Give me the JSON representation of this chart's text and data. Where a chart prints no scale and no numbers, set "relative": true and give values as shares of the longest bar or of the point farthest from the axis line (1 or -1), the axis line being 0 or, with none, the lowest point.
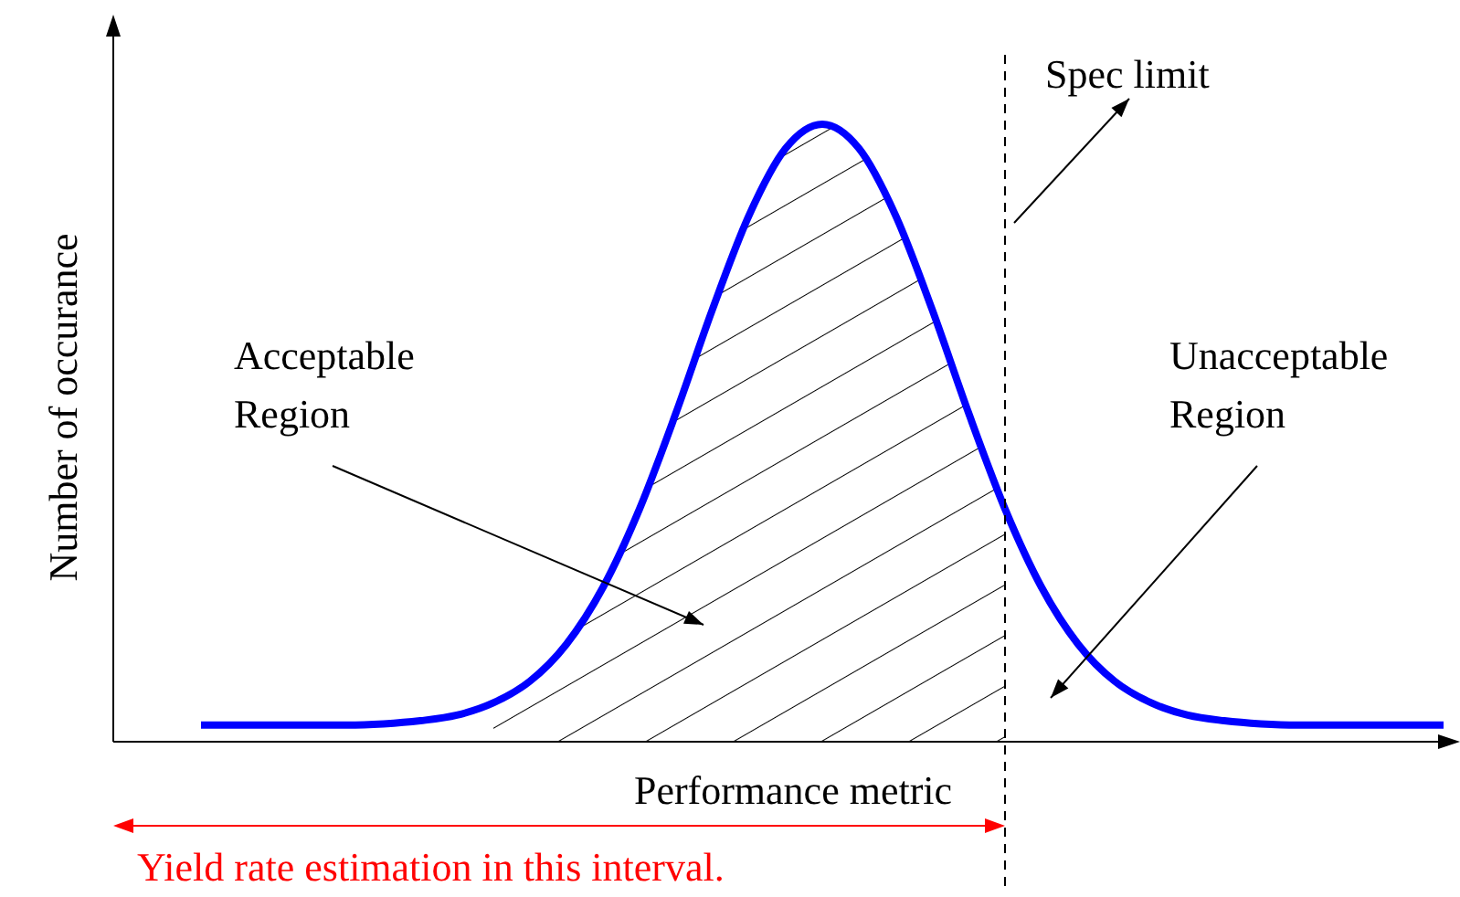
{
  "chart_data": {
    "type": "line",
    "relative": true,
    "xlabel": "Performance metric",
    "ylabel": "Number of occurance",
    "categories": [
      null,
      null,
      null,
      null,
      null,
      null,
      null,
      null,
      null,
      null,
      null,
      null,
      null,
      null,
      null,
      null,
      null,
      null,
      null,
      null,
      null,
      null,
      null,
      null,
      null,
      null,
      null,
      null,
      null,
      null,
      null,
      null,
      null,
      null,
      null
    ],
    "series": [
      {
        "type": "line",
        "color": "#0000ff",
        "values": [
          0.027,
          0.027,
          0.027,
          0.027,
          0.027,
          0.029,
          0.034,
          0.043,
          0.063,
          0.098,
          0.158,
          0.25,
          0.377,
          0.533,
          0.701,
          0.853,
          0.961,
          1,
          0.961,
          0.853,
          0.701,
          0.533,
          0.377,
          0.25,
          0.158,
          0.098,
          0.063,
          0.043,
          0.034,
          0.029,
          0.027,
          0.027,
          0.027,
          0.027,
          0.027
        ]
      },
      {
        "type": "area",
        "color": "#000000",
        "values": [
          null,
          null,
          null,
          null,
          null,
          null,
          null,
          null,
          0.063,
          0.098,
          0.158,
          0.25,
          0.377,
          0.533,
          0.701,
          0.853,
          0.961,
          1,
          0.961,
          0.853,
          0.701,
          0.533,
          0.377,
          null,
          null,
          null,
          null,
          null,
          null,
          null,
          null,
          null,
          null,
          null,
          null
        ]
      }
    ],
    "annotations": [
      "Spec limit",
      "Acceptable Region",
      "Unacceptable Region",
      "Yield rate estimation in this interval."
    ]
  }
}
